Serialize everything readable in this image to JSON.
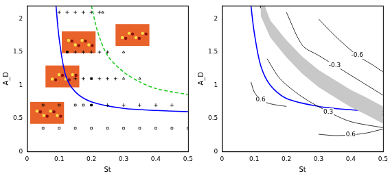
{
  "chart_data": [
    {
      "type": "scatter",
      "xlabel": "St",
      "ylabel": "A_D",
      "xlim": [
        0,
        0.5
      ],
      "xticks": [
        0,
        0.1,
        0.2,
        0.3,
        0.4,
        0.5
      ],
      "ylim": [
        0,
        2.2
      ],
      "yticks": [
        0,
        0.5,
        1,
        1.5,
        2
      ],
      "grid": false,
      "series": [
        {
          "type": "scatter",
          "marker": "square",
          "color": "#000000",
          "x": [
            0.05,
            0.1,
            0.15,
            0.2,
            0.25,
            0.3,
            0.35,
            0.4,
            0.45,
            0.5,
            0.05,
            0.1,
            0.15,
            0.175
          ],
          "values": [
            0.35,
            0.35,
            0.35,
            0.35,
            0.35,
            0.35,
            0.35,
            0.35,
            0.35,
            0.35,
            0.7,
            0.7,
            0.7,
            0.7
          ]
        },
        {
          "type": "scatter",
          "marker": "filled_square",
          "color": "#000000",
          "x": [
            0.2,
            0.2,
            0.125
          ],
          "values": [
            0.7,
            1.1,
            1.5
          ]
        },
        {
          "type": "scatter",
          "marker": "plus",
          "color": "#000000",
          "x": [
            0.25,
            0.3,
            0.35,
            0.4,
            0.45,
            0.15,
            0.175,
            0.225,
            0.25,
            0.275,
            0.15,
            0.175,
            0.2,
            0.225,
            0.25,
            0.1,
            0.125,
            0.15,
            0.175,
            0.2,
            0.225
          ],
          "values": [
            0.7,
            0.7,
            0.7,
            0.7,
            0.7,
            1.1,
            1.1,
            1.1,
            1.1,
            1.1,
            1.5,
            1.5,
            1.5,
            1.5,
            1.5,
            2.1,
            2.1,
            2.1,
            2.1,
            2.1,
            2.1
          ]
        },
        {
          "type": "scatter",
          "marker": "triangle",
          "color": "#000000",
          "x": [
            0.3,
            0.35,
            0.3,
            0.235
          ],
          "values": [
            1.1,
            1.1,
            1.5,
            2.1
          ]
        },
        {
          "type": "line",
          "line_style": "solid",
          "color": "#0000ff",
          "x": [
            0.09,
            0.1,
            0.12,
            0.15,
            0.2,
            0.3,
            0.4,
            0.5
          ],
          "values": [
            2.2,
            1.7,
            1.15,
            0.9,
            0.75,
            0.65,
            0.62,
            0.6
          ]
        },
        {
          "type": "line",
          "line_style": "dashed",
          "color": "#22cc22",
          "x": [
            0.2,
            0.22,
            0.25,
            0.3,
            0.35,
            0.4,
            0.45,
            0.5
          ],
          "values": [
            2.2,
            1.8,
            1.45,
            1.2,
            1.05,
            0.95,
            0.9,
            0.86
          ]
        }
      ]
    },
    {
      "type": "contour",
      "xlabel": "St",
      "ylabel": "A_D",
      "xlim": [
        0,
        0.5
      ],
      "xticks": [
        0,
        0.1,
        0.2,
        0.3,
        0.4,
        0.5
      ],
      "ylim": [
        0,
        2.2
      ],
      "yticks": [
        0,
        0.5,
        1,
        1.5,
        2
      ],
      "grid": false,
      "series": [
        {
          "type": "band",
          "color": "#c8c8c8",
          "x": [
            0.12,
            0.15,
            0.2,
            0.25,
            0.3,
            0.35,
            0.4,
            0.45,
            0.5
          ],
          "lower": [
            2.05,
            1.72,
            1.42,
            1.17,
            0.97,
            0.82,
            0.67,
            0.55,
            0.42
          ],
          "upper": [
            2.35,
            1.98,
            1.68,
            1.43,
            1.23,
            1.08,
            0.93,
            0.81,
            0.68
          ]
        },
        {
          "type": "line",
          "line_style": "solid",
          "color": "#000000",
          "level": 0.6,
          "x": [
            0.09,
            0.1,
            0.12,
            0.15,
            0.2
          ],
          "values": [
            1.05,
            0.9,
            0.78,
            0.72,
            0.68
          ]
        },
        {
          "type": "line",
          "line_style": "solid",
          "color": "#000000",
          "level": 0.6,
          "x": [
            0.3,
            0.35,
            0.4,
            0.45,
            0.5
          ],
          "values": [
            0.26,
            0.24,
            0.25,
            0.28,
            0.34
          ]
        },
        {
          "type": "line",
          "line_style": "solid",
          "color": "#000000",
          "level": 0.3,
          "x": [
            0.14,
            0.18,
            0.25,
            0.33,
            0.4,
            0.5
          ],
          "values": [
            1.4,
            1.1,
            0.82,
            0.6,
            0.45,
            0.36
          ]
        },
        {
          "type": "line",
          "line_style": "solid",
          "color": "#000000",
          "level": -0.3,
          "x": [
            0.2,
            0.25,
            0.3,
            0.35,
            0.45,
            0.5
          ],
          "values": [
            2.1,
            1.6,
            1.45,
            1.3,
            1.0,
            0.85
          ]
        },
        {
          "type": "line",
          "line_style": "solid",
          "color": "#000000",
          "level": -0.6,
          "x": [
            0.3,
            0.35,
            0.42,
            0.47,
            0.5
          ],
          "values": [
            2.0,
            1.75,
            1.45,
            1.3,
            1.2
          ]
        },
        {
          "type": "line",
          "line_style": "solid",
          "color": "#0000ff",
          "x": [
            0.09,
            0.1,
            0.12,
            0.15,
            0.2,
            0.3,
            0.4,
            0.5
          ],
          "values": [
            2.2,
            1.8,
            1.3,
            1.0,
            0.8,
            0.68,
            0.63,
            0.6
          ]
        },
        {
          "type": "line",
          "line_style": "dashed",
          "color": "#000000",
          "x": [
            0.13,
            0.15,
            0.2,
            0.25,
            0.3,
            0.35,
            0.4,
            0.45,
            0.5
          ],
          "values": [
            2.2,
            1.95,
            1.6,
            1.35,
            1.15,
            1.0,
            0.86,
            0.74,
            0.62
          ]
        },
        {
          "type": "line",
          "line_style": "bold",
          "color": "#000000",
          "x": [
            0.12,
            0.15,
            0.2,
            0.25,
            0.3,
            0.35,
            0.4,
            0.45,
            0.5
          ],
          "values": [
            2.2,
            1.85,
            1.55,
            1.3,
            1.1,
            0.95,
            0.8,
            0.68,
            0.55
          ]
        }
      ]
    }
  ]
}
